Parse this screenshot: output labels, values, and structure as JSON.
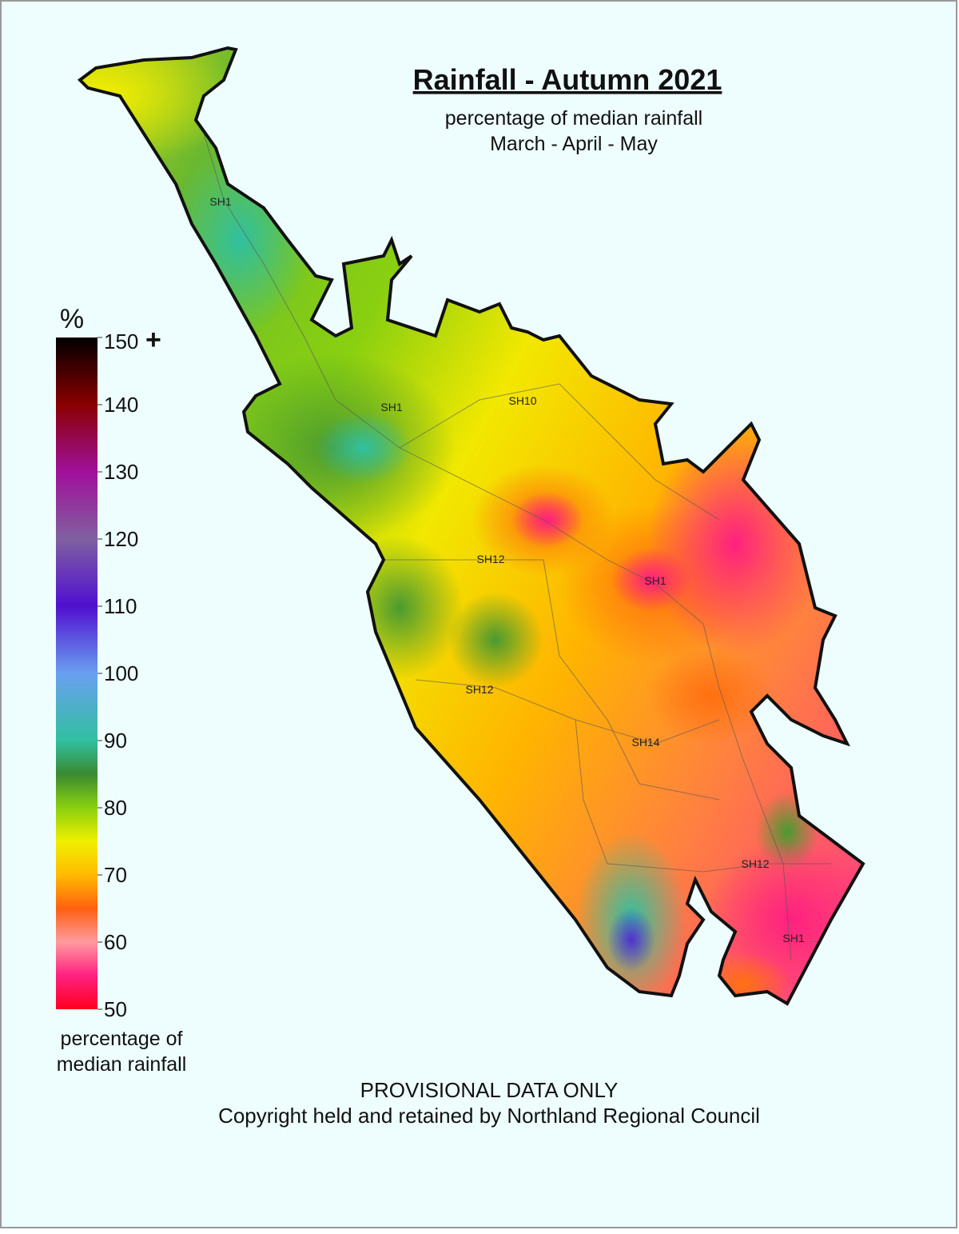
{
  "header": {
    "title": "Rainfall - Autumn 2021",
    "subtitle": "percentage of median rainfall",
    "period": "March - April - May"
  },
  "legend": {
    "unit": "%",
    "range": [
      50,
      150
    ],
    "ticks": [
      150,
      140,
      130,
      120,
      110,
      100,
      90,
      80,
      70,
      60,
      50
    ],
    "max_suffix": "+",
    "caption": [
      "percentage of",
      "median rainfall"
    ]
  },
  "road_labels": [
    "SH1",
    "SH1",
    "SH10",
    "SH12",
    "SH1",
    "SH12",
    "SH14",
    "SH12",
    "SH1"
  ],
  "footer": {
    "note": "PROVISIONAL DATA ONLY",
    "copyright": "Copyright held and retained by Northland Regional Council"
  }
}
